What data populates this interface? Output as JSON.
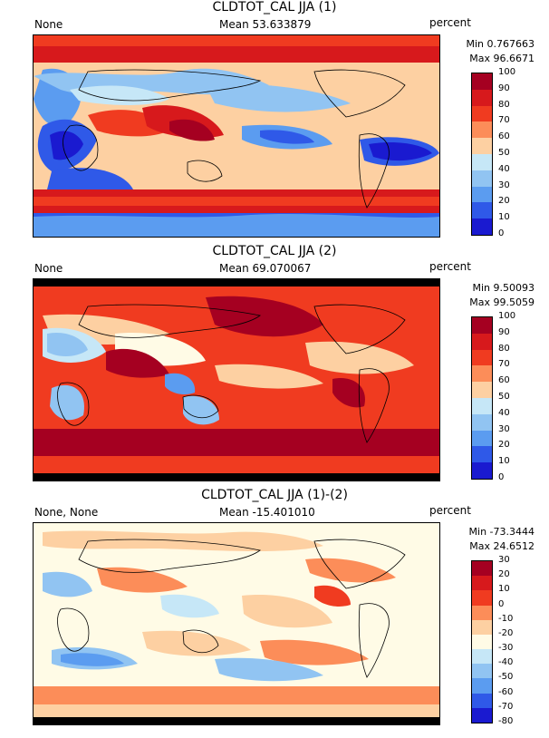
{
  "panels": [
    {
      "title": "CLDTOT_CAL JJA (1)",
      "left_label": "None",
      "mean_label": "Mean 53.633879",
      "units": "percent",
      "min_label": "Min 0.767663",
      "max_label": "Max 96.6671",
      "colorbar_labels": [
        "100",
        "90",
        "80",
        "70",
        "60",
        "50",
        "40",
        "30",
        "20",
        "10",
        "0"
      ],
      "colors": [
        "#a50021",
        "#d7191c",
        "#f03b20",
        "#fc8d59",
        "#fdd0a2",
        "#fffbe6",
        "#c6e7f7",
        "#91c4f2",
        "#5b9cf0",
        "#2f59e8",
        "#1a1ad0"
      ]
    },
    {
      "title": "CLDTOT_CAL JJA (2)",
      "left_label": "None",
      "mean_label": "Mean 69.070067",
      "units": "percent",
      "min_label": "Min 9.50093",
      "max_label": "Max 99.5059",
      "colorbar_labels": [
        "100",
        "90",
        "80",
        "70",
        "60",
        "50",
        "40",
        "30",
        "20",
        "10",
        "0"
      ],
      "colors": [
        "#a50021",
        "#d7191c",
        "#f03b20",
        "#fc8d59",
        "#fdd0a2",
        "#fffbe6",
        "#c6e7f7",
        "#91c4f2",
        "#5b9cf0",
        "#2f59e8",
        "#1a1ad0"
      ]
    },
    {
      "title": "CLDTOT_CAL JJA (1)-(2)",
      "left_label": "None, None",
      "mean_label": "Mean -15.401010",
      "units": "percent",
      "min_label": "Min -73.3444",
      "max_label": "Max 24.6512",
      "colorbar_labels": [
        "30",
        "20",
        "10",
        "0",
        "-10",
        "-20",
        "-30",
        "-40",
        "-50",
        "-60",
        "-70",
        "-80"
      ],
      "colors": [
        "#a50021",
        "#d7191c",
        "#f03b20",
        "#fc8d59",
        "#fdd0a2",
        "#fffbe6",
        "#c6e7f7",
        "#91c4f2",
        "#5b9cf0",
        "#2f59e8",
        "#1a1ad0"
      ]
    }
  ]
}
